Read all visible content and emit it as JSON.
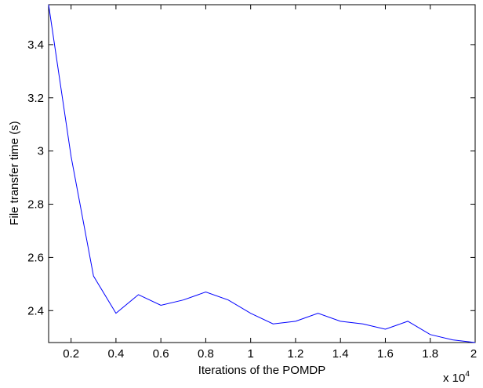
{
  "chart_data": {
    "type": "line",
    "title": "",
    "xlabel": "Iterations of the POMDP",
    "ylabel": "File transfer time (s)",
    "x_multiplier_label": "x 10",
    "x_multiplier_exponent": "4",
    "xlim": [
      0.1,
      2.0
    ],
    "ylim": [
      2.28,
      3.55
    ],
    "xticks": [
      "0.2",
      "0.4",
      "0.6",
      "0.8",
      "1",
      "1.2",
      "1.4",
      "1.6",
      "1.8",
      "2"
    ],
    "yticks": [
      "2.4",
      "2.6",
      "2.8",
      "3",
      "3.2",
      "3.4"
    ],
    "xtick_values": [
      0.2,
      0.4,
      0.6,
      0.8,
      1.0,
      1.2,
      1.4,
      1.6,
      1.8,
      2.0
    ],
    "ytick_values": [
      2.4,
      2.6,
      2.8,
      3.0,
      3.2,
      3.4
    ],
    "grid": false,
    "line_color": "#0000ff",
    "series": [
      {
        "x": [
          0.1,
          0.2,
          0.3,
          0.4,
          0.5,
          0.6,
          0.7,
          0.8,
          0.9,
          1.0,
          1.1,
          1.2,
          1.3,
          1.4,
          1.5,
          1.6,
          1.7,
          1.8,
          1.9,
          2.0
        ],
        "values": [
          3.55,
          2.98,
          2.53,
          2.39,
          2.46,
          2.42,
          2.44,
          2.47,
          2.44,
          2.39,
          2.35,
          2.36,
          2.39,
          2.36,
          2.35,
          2.33,
          2.36,
          2.31,
          2.29,
          2.28
        ]
      }
    ]
  }
}
